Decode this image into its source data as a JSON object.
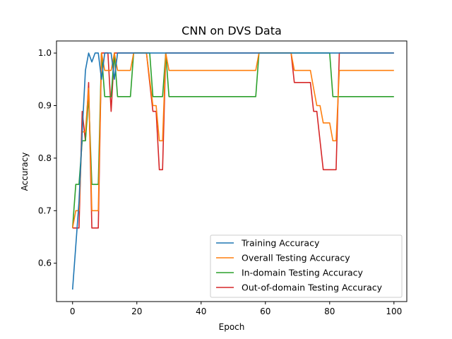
{
  "chart_data": {
    "type": "line",
    "title": "CNN on DVS Data",
    "xlabel": "Epoch",
    "ylabel": "Accuracy",
    "xlim": [
      -5,
      104
    ],
    "ylim": [
      0.527,
      1.023
    ],
    "xticks": [
      0,
      20,
      40,
      60,
      80,
      100
    ],
    "xtick_labels": [
      "0",
      "20",
      "40",
      "60",
      "80",
      "100"
    ],
    "yticks": [
      0.6,
      0.7,
      0.8,
      0.9,
      1.0
    ],
    "ytick_labels": [
      "0.6",
      "0.7",
      "0.8",
      "0.9",
      "1.0"
    ],
    "legend_position": "lower-right",
    "series": [
      {
        "name": "Training Accuracy",
        "color": "#1f77b4",
        "points": [
          [
            0,
            0.55
          ],
          [
            1,
            0.633
          ],
          [
            2,
            0.717
          ],
          [
            3,
            0.85
          ],
          [
            4,
            0.967
          ],
          [
            5,
            1.0
          ],
          [
            6,
            0.983
          ],
          [
            7,
            1.0
          ],
          [
            8,
            1.0
          ],
          [
            9,
            0.95
          ],
          [
            10,
            1.0
          ],
          [
            11,
            1.0
          ],
          [
            12,
            1.0
          ],
          [
            13,
            0.95
          ],
          [
            14,
            1.0
          ],
          [
            15,
            1.0
          ],
          [
            100,
            1.0
          ]
        ]
      },
      {
        "name": "Overall Testing Accuracy",
        "color": "#ff7f0e",
        "points": [
          [
            0,
            0.667
          ],
          [
            1,
            0.7
          ],
          [
            2,
            0.7
          ],
          [
            3,
            0.85
          ],
          [
            4,
            0.85
          ],
          [
            5,
            0.933
          ],
          [
            6,
            0.7
          ],
          [
            7,
            0.7
          ],
          [
            8,
            0.7
          ],
          [
            9,
            1.0
          ],
          [
            10,
            0.967
          ],
          [
            11,
            0.967
          ],
          [
            12,
            0.967
          ],
          [
            13,
            1.0
          ],
          [
            14,
            0.967
          ],
          [
            15,
            0.967
          ],
          [
            16,
            0.967
          ],
          [
            17,
            0.967
          ],
          [
            18,
            0.967
          ],
          [
            19,
            1.0
          ],
          [
            20,
            1.0
          ],
          [
            21,
            1.0
          ],
          [
            22,
            1.0
          ],
          [
            23,
            1.0
          ],
          [
            24,
            0.95
          ],
          [
            25,
            0.9
          ],
          [
            26,
            0.9
          ],
          [
            27,
            0.833
          ],
          [
            28,
            0.833
          ],
          [
            29,
            1.0
          ],
          [
            30,
            0.967
          ],
          [
            56,
            0.967
          ],
          [
            57,
            0.967
          ],
          [
            58,
            1.0
          ],
          [
            68,
            1.0
          ],
          [
            69,
            0.967
          ],
          [
            70,
            0.967
          ],
          [
            71,
            0.967
          ],
          [
            72,
            0.967
          ],
          [
            73,
            0.967
          ],
          [
            74,
            0.967
          ],
          [
            75,
            0.933
          ],
          [
            76,
            0.9
          ],
          [
            77,
            0.9
          ],
          [
            78,
            0.867
          ],
          [
            79,
            0.867
          ],
          [
            80,
            0.867
          ],
          [
            81,
            0.833
          ],
          [
            82,
            0.833
          ],
          [
            83,
            0.967
          ],
          [
            100,
            0.967
          ]
        ]
      },
      {
        "name": "In-domain Testing Accuracy",
        "color": "#2ca02c",
        "points": [
          [
            0,
            0.667
          ],
          [
            1,
            0.75
          ],
          [
            2,
            0.75
          ],
          [
            3,
            0.833
          ],
          [
            4,
            0.833
          ],
          [
            5,
            0.917
          ],
          [
            6,
            0.75
          ],
          [
            7,
            0.75
          ],
          [
            8,
            0.75
          ],
          [
            9,
            1.0
          ],
          [
            10,
            0.917
          ],
          [
            11,
            0.917
          ],
          [
            12,
            0.917
          ],
          [
            13,
            1.0
          ],
          [
            14,
            0.917
          ],
          [
            15,
            0.917
          ],
          [
            16,
            0.917
          ],
          [
            17,
            0.917
          ],
          [
            18,
            0.917
          ],
          [
            19,
            1.0
          ],
          [
            23,
            1.0
          ],
          [
            24,
            1.0
          ],
          [
            25,
            0.917
          ],
          [
            26,
            0.917
          ],
          [
            27,
            0.917
          ],
          [
            28,
            0.917
          ],
          [
            29,
            1.0
          ],
          [
            30,
            0.917
          ],
          [
            56,
            0.917
          ],
          [
            57,
            0.917
          ],
          [
            58,
            1.0
          ],
          [
            80,
            1.0
          ],
          [
            81,
            0.917
          ],
          [
            100,
            0.917
          ]
        ]
      },
      {
        "name": "Out-of-domain Testing Accuracy",
        "color": "#d62728",
        "points": [
          [
            0,
            0.667
          ],
          [
            1,
            0.667
          ],
          [
            2,
            0.667
          ],
          [
            3,
            0.889
          ],
          [
            4,
            0.833
          ],
          [
            5,
            0.944
          ],
          [
            6,
            0.667
          ],
          [
            7,
            0.667
          ],
          [
            8,
            0.667
          ],
          [
            9,
            1.0
          ],
          [
            10,
            1.0
          ],
          [
            11,
            1.0
          ],
          [
            12,
            0.889
          ],
          [
            13,
            1.0
          ],
          [
            19,
            1.0
          ],
          [
            23,
            1.0
          ],
          [
            24,
            0.944
          ],
          [
            25,
            0.889
          ],
          [
            26,
            0.889
          ],
          [
            27,
            0.778
          ],
          [
            28,
            0.778
          ],
          [
            29,
            1.0
          ],
          [
            30,
            1.0
          ],
          [
            68,
            1.0
          ],
          [
            69,
            0.944
          ],
          [
            74,
            0.944
          ],
          [
            75,
            0.889
          ],
          [
            76,
            0.889
          ],
          [
            77,
            0.833
          ],
          [
            78,
            0.778
          ],
          [
            79,
            0.778
          ],
          [
            82,
            0.778
          ],
          [
            83,
            1.0
          ],
          [
            100,
            1.0
          ]
        ]
      }
    ]
  }
}
